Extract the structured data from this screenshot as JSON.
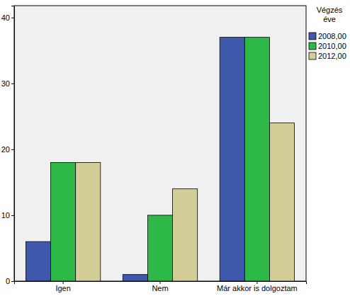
{
  "chart_data": {
    "type": "bar",
    "categories": [
      "Igen",
      "Nem",
      "Már akkor is dolgoztam"
    ],
    "legend_title": "Végzés éve",
    "series": [
      {
        "name": "2008,00",
        "color": "#3e58ac",
        "values": [
          6,
          1,
          37
        ]
      },
      {
        "name": "2010,00",
        "color": "#2eb848",
        "values": [
          18,
          10,
          37
        ]
      },
      {
        "name": "2012,00",
        "color": "#d3ce97",
        "values": [
          18,
          14,
          24
        ]
      }
    ],
    "ylim": [
      0,
      41.8
    ],
    "yticks": [
      0,
      10,
      20,
      30,
      40
    ],
    "grid": false,
    "legend": "right"
  }
}
